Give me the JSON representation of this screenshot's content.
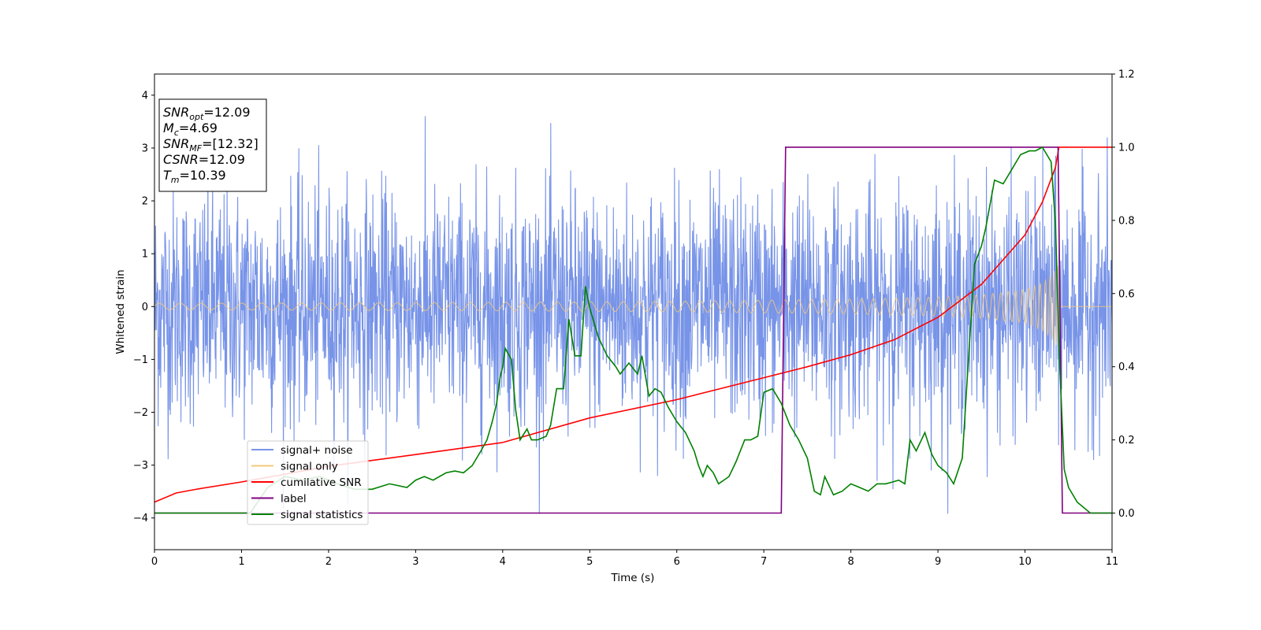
{
  "chart_data": {
    "type": "line",
    "title": "",
    "xlabel": "Time (s)",
    "ylabel": "Whitened strain",
    "xlim": [
      0,
      11
    ],
    "ylim": [
      -4.6,
      4.4
    ],
    "y2lim": [
      -0.1,
      1.2
    ],
    "x_ticks": [
      "0",
      "1",
      "2",
      "3",
      "4",
      "5",
      "6",
      "7",
      "8",
      "9",
      "10",
      "11"
    ],
    "y_ticks": [
      "4",
      "3",
      "2",
      "1",
      "0",
      "−1",
      "−2",
      "−3",
      "−4"
    ],
    "y2_ticks": [
      "1.2",
      "1.0",
      "0.8",
      "0.6",
      "0.4",
      "0.2",
      "0.0"
    ],
    "grid": false,
    "legend_position": "lower-left",
    "annotation": [
      {
        "base": "SNR",
        "sub": "opt",
        "value": "=12.09"
      },
      {
        "base": "M",
        "sub": "c",
        "value": "=4.69"
      },
      {
        "base": "SNR",
        "sub": "MF",
        "value": "=[12.32]"
      },
      {
        "base": "CSNR",
        "sub": "",
        "value": "=12.09"
      },
      {
        "base": "T",
        "sub": "m",
        "value": "=10.39"
      }
    ],
    "series": [
      {
        "name": "signal+ noise",
        "axis": "left",
        "color": "#7894e8",
        "description_values": {
          "amplitude_typical": 1.1,
          "peak_max": 3.97,
          "peak_min": -3.92,
          "end_time": 11
        }
      },
      {
        "name": "signal only",
        "axis": "left",
        "color": "#f4c97a",
        "envelope": {
          "x": [
            0,
            2,
            4,
            6,
            8,
            9,
            9.5,
            10,
            10.2,
            10.3,
            10.39,
            10.4,
            11
          ],
          "amplitude": [
            0.06,
            0.07,
            0.08,
            0.1,
            0.14,
            0.18,
            0.22,
            0.32,
            0.45,
            0.6,
            0.8,
            0.0,
            0.0
          ]
        }
      },
      {
        "name": "cumilative SNR",
        "axis": "right",
        "color": "#ff0000",
        "x": [
          0,
          0.25,
          0.5,
          1,
          2,
          3,
          4,
          5,
          6,
          7,
          7.5,
          8,
          8.5,
          9,
          9.5,
          10,
          10.2,
          10.35,
          10.39,
          10.42,
          11
        ],
        "y": [
          0.03,
          0.055,
          0.066,
          0.085,
          0.128,
          0.16,
          0.193,
          0.26,
          0.31,
          0.37,
          0.4,
          0.433,
          0.474,
          0.535,
          0.625,
          0.76,
          0.85,
          0.945,
          1.0,
          1.0,
          1.0
        ]
      },
      {
        "name": "label",
        "axis": "right",
        "color": "#800080",
        "x": [
          0,
          7.2,
          7.25,
          10.38,
          10.43,
          11
        ],
        "y": [
          0,
          0,
          1,
          1,
          0,
          0
        ]
      },
      {
        "name": "signal statistics",
        "axis": "right",
        "color": "#008000",
        "x": [
          0,
          0.5,
          1,
          1.1,
          1.3,
          1.5,
          1.7,
          1.9,
          2.1,
          2.3,
          2.5,
          2.7,
          2.9,
          3.0,
          3.1,
          3.2,
          3.35,
          3.45,
          3.55,
          3.65,
          3.75,
          3.82,
          3.88,
          3.93,
          3.97,
          4.0,
          4.03,
          4.1,
          4.15,
          4.2,
          4.28,
          4.33,
          4.4,
          4.5,
          4.55,
          4.62,
          4.7,
          4.76,
          4.83,
          4.9,
          4.95,
          5.0,
          5.05,
          5.1,
          5.2,
          5.3,
          5.35,
          5.45,
          5.55,
          5.6,
          5.68,
          5.75,
          5.82,
          5.9,
          6.0,
          6.1,
          6.2,
          6.25,
          6.3,
          6.35,
          6.42,
          6.48,
          6.6,
          6.68,
          6.78,
          6.85,
          6.93,
          7.0,
          7.1,
          7.2,
          7.3,
          7.4,
          7.5,
          7.58,
          7.65,
          7.7,
          7.8,
          7.9,
          8.0,
          8.1,
          8.2,
          8.3,
          8.4,
          8.48,
          8.55,
          8.62,
          8.68,
          8.75,
          8.85,
          8.93,
          9.0,
          9.1,
          9.18,
          9.28,
          9.35,
          9.42,
          9.5,
          9.55,
          9.65,
          9.75,
          9.85,
          9.95,
          10.05,
          10.12,
          10.2,
          10.3,
          10.35,
          10.4,
          10.45,
          10.5,
          10.6,
          10.75,
          11
        ],
        "y": [
          0.0,
          0.0,
          0.0,
          0.0,
          0.07,
          0.1,
          0.09,
          0.1,
          0.08,
          0.065,
          0.065,
          0.08,
          0.07,
          0.09,
          0.1,
          0.09,
          0.11,
          0.115,
          0.11,
          0.13,
          0.17,
          0.2,
          0.25,
          0.3,
          0.37,
          0.4,
          0.45,
          0.42,
          0.28,
          0.2,
          0.23,
          0.2,
          0.2,
          0.21,
          0.24,
          0.34,
          0.34,
          0.53,
          0.43,
          0.43,
          0.62,
          0.56,
          0.52,
          0.48,
          0.43,
          0.4,
          0.38,
          0.41,
          0.38,
          0.43,
          0.32,
          0.34,
          0.33,
          0.29,
          0.25,
          0.22,
          0.17,
          0.13,
          0.1,
          0.13,
          0.11,
          0.08,
          0.1,
          0.14,
          0.2,
          0.2,
          0.21,
          0.33,
          0.34,
          0.3,
          0.24,
          0.2,
          0.15,
          0.06,
          0.05,
          0.1,
          0.05,
          0.06,
          0.08,
          0.07,
          0.06,
          0.08,
          0.08,
          0.085,
          0.09,
          0.08,
          0.2,
          0.17,
          0.22,
          0.16,
          0.13,
          0.11,
          0.08,
          0.15,
          0.42,
          0.68,
          0.73,
          0.78,
          0.91,
          0.9,
          0.94,
          0.98,
          0.99,
          0.99,
          1.0,
          0.96,
          0.79,
          0.4,
          0.12,
          0.07,
          0.03,
          0.0,
          0.0
        ]
      }
    ]
  }
}
